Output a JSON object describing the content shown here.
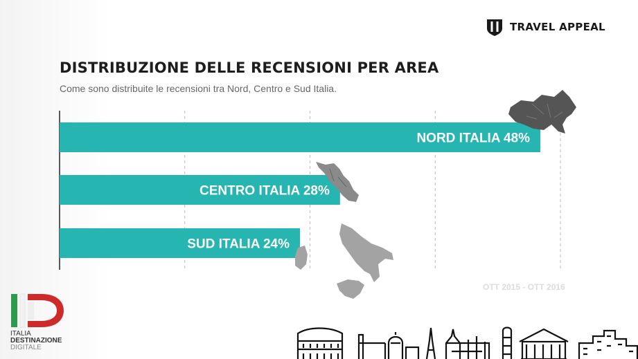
{
  "brand": {
    "name": "TRAVEL APPEAL"
  },
  "header": {
    "title": "DISTRIBUZIONE DELLE RECENSIONI PER AREA",
    "subtitle": "Come sono distribuite le recensioni tra Nord, Centro e Sud Italia."
  },
  "period": "OTT 2015 - OTT 2016",
  "logo": {
    "line1": "ITALIA",
    "line2": "DESTINAZIONE",
    "line3": "DIGITALE"
  },
  "colors": {
    "bar": "#26b5b0",
    "map": "#555555",
    "map_light": "#8a8a8a",
    "map_lighter": "#a3a3a3"
  },
  "icons": [
    "travel-appeal-shield-icon",
    "nord-italia-map-icon",
    "centro-italia-map-icon",
    "sud-italia-map-icon",
    "id-logo-icon",
    "monuments-skyline-icon"
  ],
  "chart_data": {
    "type": "bar",
    "orientation": "horizontal",
    "categories": [
      "NORD ITALIA",
      "CENTRO ITALIA",
      "SUD ITALIA"
    ],
    "values": [
      48,
      28,
      24
    ],
    "labels": [
      "NORD ITALIA 48%",
      "CENTRO ITALIA 28%",
      "SUD ITALIA 24%"
    ],
    "xlim": [
      0,
      50
    ],
    "grid": true,
    "unit": "%"
  }
}
